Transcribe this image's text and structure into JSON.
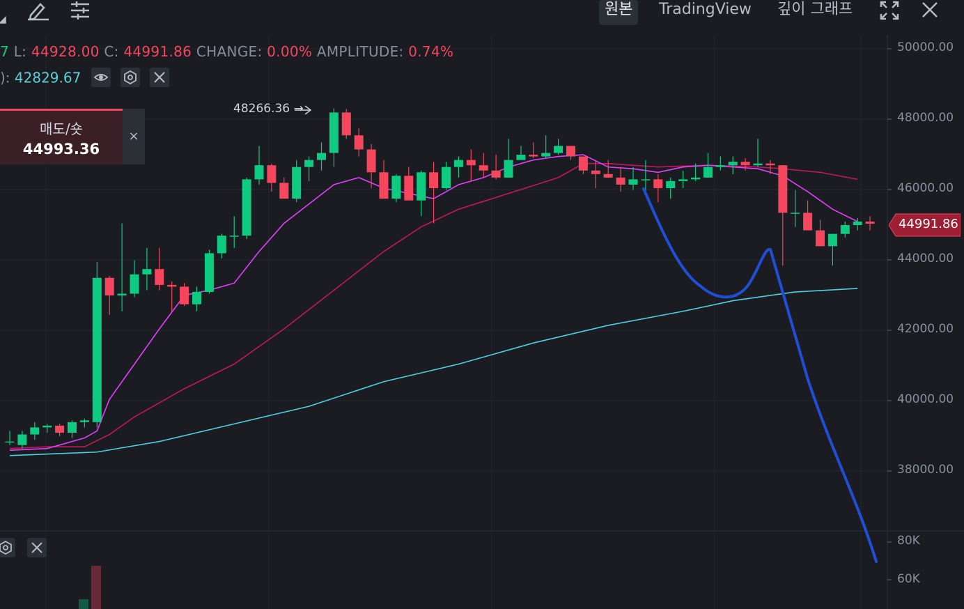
{
  "toolbar": {
    "mode_original": "원본",
    "mode_tradingview": "TradingView",
    "mode_depth": "깊이 그래프"
  },
  "ohlc": {
    "partial_prefix": "7",
    "low_label": "L:",
    "low_value": "44928.00",
    "close_label": "C:",
    "close_value": "44991.86",
    "change_label": "CHANGE:",
    "change_value": "0.00%",
    "amplitude_label": "AMPLITUDE:",
    "amplitude_value": "0.74%"
  },
  "indicator": {
    "partial_prefix": "):",
    "value": "42829.67"
  },
  "order_panel": {
    "label": "매도/숏",
    "price": "44993.36",
    "close_glyph": "×"
  },
  "chart": {
    "peak_label": "48266.36 →",
    "current_price": "44991.86",
    "y_axis_labels": [
      "50000.00",
      "48000.00",
      "46000.00",
      "44000.00",
      "42000.00",
      "40000.00",
      "38000.00"
    ],
    "volume_axis_labels": [
      "80K",
      "60K"
    ]
  },
  "colors": {
    "background": "#1b1c22",
    "up": "#0ecb81",
    "down": "#f6465d",
    "ma_fast": "#e040fb",
    "ma_mid": "#c2185b",
    "ma_slow": "#4dd0e1",
    "drawing": "#1f4fd6"
  },
  "chart_data": {
    "type": "candlestick",
    "ylim": [
      36600,
      50400
    ],
    "candles": [
      [
        38800,
        39100,
        38700,
        38800
      ],
      [
        38700,
        39100,
        38600,
        39000
      ],
      [
        39000,
        39350,
        38850,
        39200
      ],
      [
        39200,
        39300,
        39050,
        39250
      ],
      [
        39250,
        39300,
        38950,
        39050
      ],
      [
        39050,
        39400,
        38900,
        39350
      ],
      [
        39350,
        39450,
        39200,
        39400
      ],
      [
        39350,
        43900,
        39200,
        43450
      ],
      [
        43450,
        43500,
        42400,
        42950
      ],
      [
        42950,
        45000,
        42500,
        43000
      ],
      [
        43000,
        43950,
        42900,
        43550
      ],
      [
        43550,
        44300,
        43100,
        43700
      ],
      [
        43700,
        44300,
        43100,
        43250
      ],
      [
        43250,
        43350,
        42500,
        43200
      ],
      [
        43200,
        43300,
        42650,
        42700
      ],
      [
        42700,
        43200,
        42500,
        43050
      ],
      [
        43050,
        44250,
        43000,
        44150
      ],
      [
        44150,
        44700,
        44000,
        44650
      ],
      [
        44650,
        45200,
        44300,
        44650
      ],
      [
        44650,
        46300,
        44550,
        46250
      ],
      [
        46250,
        47200,
        46100,
        46650
      ],
      [
        46650,
        46700,
        45900,
        46150
      ],
      [
        46150,
        46300,
        45700,
        45700
      ],
      [
        45700,
        46800,
        45600,
        46600
      ],
      [
        46600,
        46900,
        46200,
        46800
      ],
      [
        46800,
        47300,
        46500,
        47000
      ],
      [
        47000,
        48266,
        46600,
        48150
      ],
      [
        48150,
        48250,
        47400,
        47500
      ],
      [
        47500,
        47700,
        46900,
        47100
      ],
      [
        47100,
        47250,
        46000,
        46450
      ],
      [
        46450,
        46800,
        45700,
        45700
      ],
      [
        45700,
        46400,
        45600,
        46350
      ],
      [
        46350,
        46600,
        45700,
        45650
      ],
      [
        45650,
        46500,
        45200,
        46450
      ],
      [
        46450,
        46750,
        45000,
        46000
      ],
      [
        46000,
        46750,
        45950,
        46600
      ],
      [
        46600,
        46900,
        46300,
        46800
      ],
      [
        46800,
        47100,
        46200,
        46650
      ],
      [
        46650,
        47000,
        46300,
        46500
      ],
      [
        46500,
        46950,
        46250,
        46300
      ],
      [
        46300,
        47400,
        46300,
        46800
      ],
      [
        46800,
        47200,
        46800,
        46950
      ],
      [
        46950,
        47300,
        46850,
        46900
      ],
      [
        46900,
        47500,
        46850,
        47000
      ],
      [
        47000,
        47400,
        46950,
        47200
      ],
      [
        47200,
        47200,
        46800,
        46900
      ],
      [
        46900,
        46900,
        46400,
        46500
      ],
      [
        46500,
        46800,
        46000,
        46400
      ],
      [
        46400,
        46800,
        46300,
        46300
      ],
      [
        46300,
        46600,
        45900,
        46100
      ],
      [
        46100,
        46600,
        45950,
        46250
      ],
      [
        46250,
        46800,
        45800,
        46250
      ],
      [
        46250,
        46400,
        45600,
        46000
      ],
      [
        46000,
        46300,
        45700,
        46200
      ],
      [
        46200,
        46500,
        46000,
        46250
      ],
      [
        46250,
        46700,
        46200,
        46300
      ],
      [
        46300,
        47000,
        46300,
        46600
      ],
      [
        46600,
        46900,
        46500,
        46650
      ],
      [
        46650,
        46900,
        46400,
        46750
      ],
      [
        46750,
        46850,
        46500,
        46650
      ],
      [
        46650,
        47400,
        46600,
        46700
      ],
      [
        46700,
        46800,
        46400,
        46650
      ],
      [
        46650,
        46650,
        43800,
        45300
      ],
      [
        45300,
        45950,
        44900,
        45300
      ],
      [
        45300,
        45650,
        44900,
        44800
      ],
      [
        44800,
        45100,
        44350,
        44350
      ],
      [
        44350,
        44700,
        43800,
        44700
      ],
      [
        44700,
        45050,
        44600,
        44950
      ],
      [
        44950,
        45150,
        44800,
        45050
      ],
      [
        45050,
        45200,
        44800,
        44990
      ]
    ],
    "ma_fast": [
      [
        0,
        38550
      ],
      [
        3,
        38600
      ],
      [
        6,
        38900
      ],
      [
        7,
        39100
      ],
      [
        8,
        40000
      ],
      [
        10,
        41000
      ],
      [
        12,
        42000
      ],
      [
        14,
        42950
      ],
      [
        16,
        43100
      ],
      [
        18,
        43300
      ],
      [
        20,
        44200
      ],
      [
        22,
        45000
      ],
      [
        24,
        45550
      ],
      [
        26,
        46100
      ],
      [
        28,
        46300
      ],
      [
        30,
        46000
      ],
      [
        32,
        45850
      ],
      [
        34,
        45700
      ],
      [
        36,
        46100
      ],
      [
        38,
        46300
      ],
      [
        40,
        46600
      ],
      [
        42,
        46800
      ],
      [
        44,
        46900
      ],
      [
        46,
        46950
      ],
      [
        48,
        46600
      ],
      [
        50,
        46550
      ],
      [
        52,
        46450
      ],
      [
        54,
        46600
      ],
      [
        56,
        46650
      ],
      [
        58,
        46600
      ],
      [
        60,
        46550
      ],
      [
        62,
        46350
      ],
      [
        64,
        45900
      ],
      [
        66,
        45400
      ],
      [
        68,
        45050
      ]
    ],
    "ma_mid": [
      [
        0,
        38600
      ],
      [
        3,
        38650
      ],
      [
        6,
        38650
      ],
      [
        8,
        39000
      ],
      [
        10,
        39500
      ],
      [
        14,
        40300
      ],
      [
        18,
        41000
      ],
      [
        22,
        42000
      ],
      [
        26,
        43100
      ],
      [
        30,
        44200
      ],
      [
        33,
        44900
      ],
      [
        36,
        45400
      ],
      [
        40,
        45850
      ],
      [
        44,
        46300
      ],
      [
        46,
        46700
      ],
      [
        48,
        46700
      ],
      [
        52,
        46600
      ],
      [
        56,
        46650
      ],
      [
        60,
        46600
      ],
      [
        62,
        46550
      ],
      [
        65,
        46450
      ],
      [
        68,
        46250
      ]
    ],
    "ma_slow": [
      [
        0,
        38400
      ],
      [
        7,
        38500
      ],
      [
        12,
        38800
      ],
      [
        18,
        39300
      ],
      [
        24,
        39800
      ],
      [
        30,
        40500
      ],
      [
        36,
        41000
      ],
      [
        42,
        41600
      ],
      [
        48,
        42100
      ],
      [
        54,
        42500
      ],
      [
        58,
        42800
      ],
      [
        63,
        43050
      ],
      [
        68,
        43150
      ]
    ]
  }
}
